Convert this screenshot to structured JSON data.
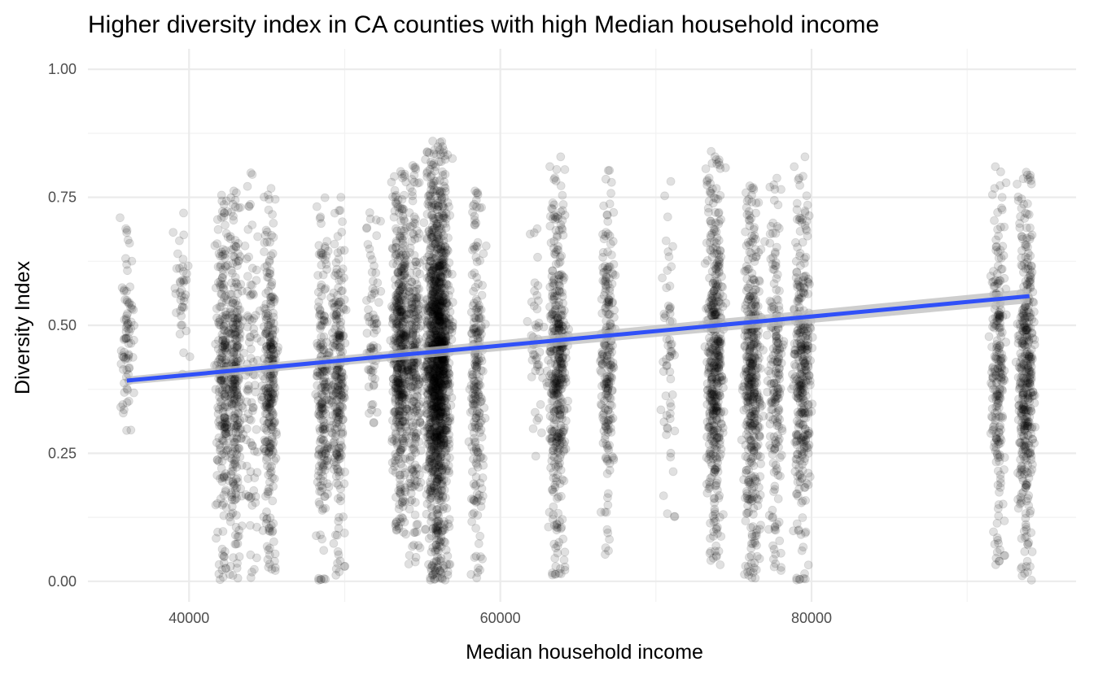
{
  "chart_data": {
    "type": "scatter",
    "title": "Higher diversity index in CA counties with high Median household income",
    "xlabel": "Median household income",
    "ylabel": "Diversity Index",
    "xlim": [
      33500,
      97000
    ],
    "ylim": [
      -0.04,
      1.04
    ],
    "x_ticks": [
      {
        "value": 40000,
        "label": "40000"
      },
      {
        "value": 60000,
        "label": "60000"
      },
      {
        "value": 80000,
        "label": "80000"
      }
    ],
    "y_ticks": [
      {
        "value": 0.0,
        "label": "0.00"
      },
      {
        "value": 0.25,
        "label": "0.25"
      },
      {
        "value": 0.5,
        "label": "0.50"
      },
      {
        "value": 0.75,
        "label": "0.75"
      },
      {
        "value": 1.0,
        "label": "1.00"
      }
    ],
    "grid": true,
    "legend": "none",
    "point_color": "#000000",
    "point_alpha": 0.12,
    "trend_color": "#3050f8",
    "trend_band_color": "#bdbdbd",
    "trend_line": {
      "x": [
        36000,
        94000
      ],
      "y": [
        0.392,
        0.557
      ],
      "se_band": [
        0.008,
        0.014
      ]
    },
    "point_clusters": [
      {
        "x": 36000,
        "y_range": [
          0.27,
          0.73
        ],
        "count": 80
      },
      {
        "x": 39500,
        "y_range": [
          0.37,
          0.73
        ],
        "count": 40
      },
      {
        "x": 42200,
        "y_range": [
          0.0,
          0.77
        ],
        "count": 260
      },
      {
        "x": 43000,
        "y_range": [
          0.0,
          0.77
        ],
        "count": 280
      },
      {
        "x": 44000,
        "y_range": [
          0.0,
          0.81
        ],
        "count": 90
      },
      {
        "x": 45200,
        "y_range": [
          0.01,
          0.77
        ],
        "count": 300
      },
      {
        "x": 48600,
        "y_range": [
          0.0,
          0.75
        ],
        "count": 220
      },
      {
        "x": 49600,
        "y_range": [
          0.0,
          0.76
        ],
        "count": 250
      },
      {
        "x": 51800,
        "y_range": [
          0.3,
          0.72
        ],
        "count": 70
      },
      {
        "x": 53600,
        "y_range": [
          0.09,
          0.81
        ],
        "count": 520
      },
      {
        "x": 54500,
        "y_range": [
          0.02,
          0.82
        ],
        "count": 260
      },
      {
        "x": 56000,
        "y_range": [
          0.0,
          0.86
        ],
        "count": 1500
      },
      {
        "x": 58500,
        "y_range": [
          0.0,
          0.77
        ],
        "count": 230
      },
      {
        "x": 62300,
        "y_range": [
          0.23,
          0.69
        ],
        "count": 45
      },
      {
        "x": 63700,
        "y_range": [
          0.01,
          0.83
        ],
        "count": 440
      },
      {
        "x": 66900,
        "y_range": [
          0.04,
          0.84
        ],
        "count": 230
      },
      {
        "x": 70800,
        "y_range": [
          0.1,
          0.79
        ],
        "count": 60
      },
      {
        "x": 73800,
        "y_range": [
          0.03,
          0.84
        ],
        "count": 480
      },
      {
        "x": 76200,
        "y_range": [
          0.0,
          0.78
        ],
        "count": 440
      },
      {
        "x": 77700,
        "y_range": [
          0.01,
          0.79
        ],
        "count": 200
      },
      {
        "x": 79400,
        "y_range": [
          0.0,
          0.83
        ],
        "count": 350
      },
      {
        "x": 92000,
        "y_range": [
          0.02,
          0.81
        ],
        "count": 240
      },
      {
        "x": 93800,
        "y_range": [
          0.0,
          0.81
        ],
        "count": 420
      }
    ]
  }
}
